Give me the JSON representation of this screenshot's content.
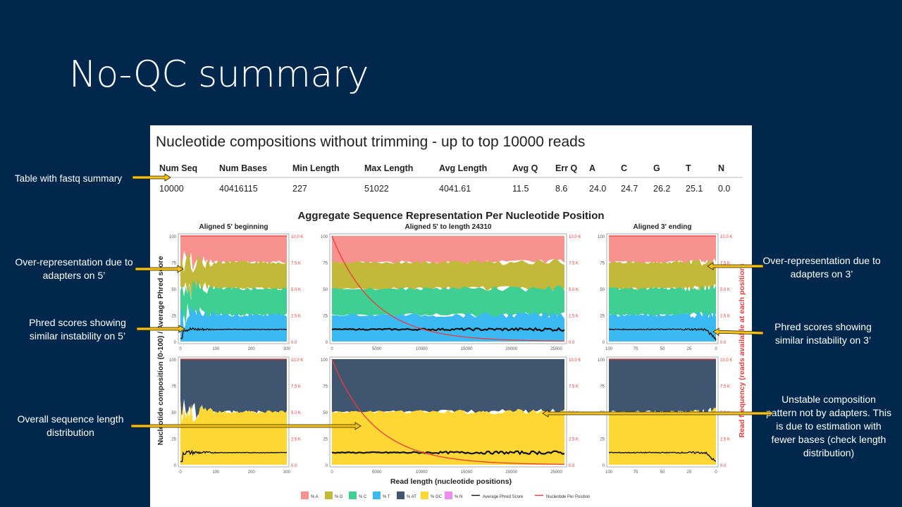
{
  "slide": {
    "title": "No-QC summary"
  },
  "panel": {
    "title": "Nucleotide compositions without trimming - up to top 10000 reads",
    "table": {
      "headers": [
        "Num Seq",
        "Num Bases",
        "Min Length",
        "Max Length",
        "Avg Length",
        "Avg Q",
        "Err Q",
        "A",
        "C",
        "G",
        "T",
        "N"
      ],
      "row": [
        "10000",
        "40416115",
        "227",
        "51022",
        "4041.61",
        "11.5",
        "8.6",
        "24.0",
        "24.7",
        "26.2",
        "25.1",
        "0.0"
      ]
    },
    "plot_title": "Aggregate Sequence Representation Per Nucleotide Position",
    "subplot_titles": [
      "Aligned 5' beginning",
      "Aligned 5' to length 24310",
      "Aligned 3' ending"
    ],
    "y_left_label": "Nucleotide composition (0-100) / Average Phred score",
    "y_right_label": "Read frequency (reads available at each position)",
    "x_label": "Read length (nucleotide positions)",
    "left_ticks": [
      "100",
      "75",
      "50",
      "25",
      "0"
    ],
    "right_ticks": [
      "10.0 K",
      "7.5 K",
      "5.0 K",
      "2.5 K",
      "0.0"
    ],
    "x_ticks_left": [
      "0",
      "100",
      "200",
      "300"
    ],
    "x_ticks_mid": [
      "0",
      "5000",
      "10000",
      "15000",
      "20000",
      "25000"
    ],
    "x_ticks_right": [
      "100",
      "75",
      "50",
      "25",
      "0"
    ],
    "legend": [
      "% A",
      "% G",
      "% C",
      "% T",
      "% AT",
      "% GC",
      "% N",
      "Average Phred Score",
      "Nucleotide Per Position"
    ],
    "colors": {
      "A": "#f8928e",
      "G": "#c2b83a",
      "C": "#3fcf93",
      "T": "#3bb9f2",
      "AT": "#3f5570",
      "GC": "#fdd835",
      "N": "#ef8cf0",
      "phred": "#111111",
      "freq": "#ee3a3a"
    }
  },
  "annotations": {
    "table_note": "Table with fastq summary",
    "over5": "Over-representation due to adapters on 5’",
    "phred5": "Phred scores showing similar instability on 5’",
    "length_dist": "Overall sequence length distribution",
    "over3": "Over-representation due to adapters on 3’",
    "phred3": "Phred scores showing similar instability on 3’",
    "unstable": "Unstable composition pattern not by adapters. This is due to estimation with fewer bases (check length distribution)"
  }
}
